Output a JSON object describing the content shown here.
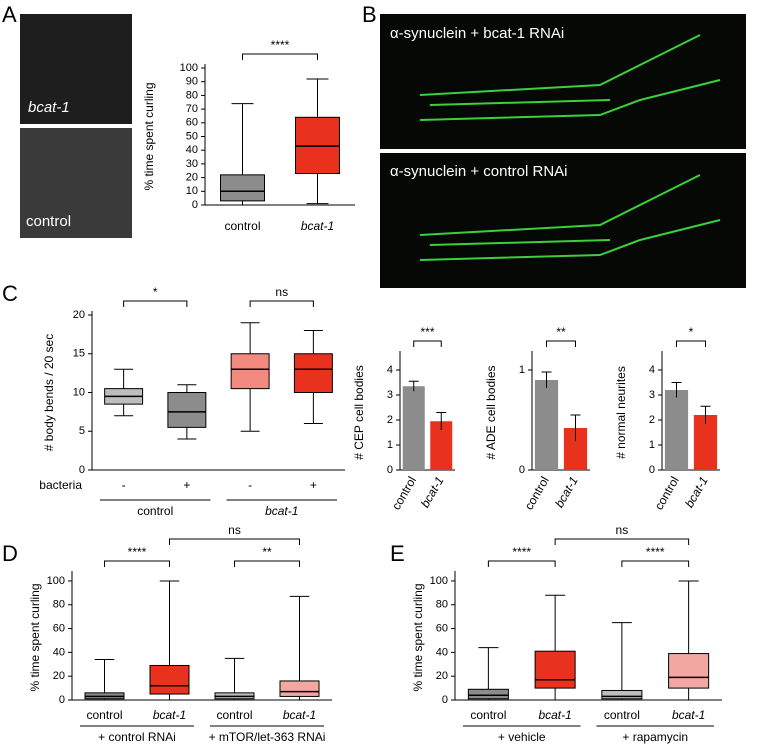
{
  "panel_labels": [
    "A",
    "B",
    "C",
    "D",
    "E"
  ],
  "images": {
    "a_top": "bcat-1",
    "a_bottom": "control",
    "b_top": "α-synuclein + bcat-1 RNAi",
    "b_bottom": "α-synuclein + control RNAi"
  },
  "chart_data": [
    {
      "type": "box",
      "ylabel": "% time spent curling",
      "categories": [
        "control",
        "bcat-1"
      ],
      "colors": [
        "#8c8c8c",
        "#e8321e"
      ],
      "boxes": [
        {
          "min": 0,
          "q1": 3,
          "median": 10,
          "q3": 22,
          "max": 74
        },
        {
          "min": 1,
          "q1": 23,
          "median": 43,
          "q3": 64,
          "max": 92
        }
      ],
      "ylim": [
        0,
        100
      ],
      "yticks": [
        0,
        10,
        20,
        30,
        40,
        50,
        60,
        70,
        80,
        90,
        100
      ],
      "comparisons": [
        {
          "label": "****",
          "pair": [
            0,
            1
          ]
        }
      ]
    },
    {
      "type": "box",
      "ylabel": "# body bends / 20 sec",
      "categories": [
        "-",
        "+",
        "-",
        "+"
      ],
      "row_label": "bacteria",
      "groups": [
        "control",
        "bcat-1"
      ],
      "colors": [
        "#bdbdbd",
        "#8c8c8c",
        "#f28a80",
        "#e8321e"
      ],
      "boxes": [
        {
          "min": 7,
          "q1": 8.5,
          "median": 9.5,
          "q3": 10.5,
          "max": 13
        },
        {
          "min": 4,
          "q1": 5.5,
          "median": 7.5,
          "q3": 10,
          "max": 11
        },
        {
          "min": 5,
          "q1": 10.5,
          "median": 13,
          "q3": 15,
          "max": 19
        },
        {
          "min": 6,
          "q1": 10,
          "median": 13,
          "q3": 15,
          "max": 18
        }
      ],
      "ylim": [
        0,
        20
      ],
      "yticks": [
        0,
        5,
        10,
        15,
        20
      ],
      "comparisons": [
        {
          "label": "*",
          "pair": [
            0,
            1
          ]
        },
        {
          "label": "ns",
          "pair": [
            2,
            3
          ]
        }
      ]
    },
    {
      "type": "bar",
      "ylabel": "# CEP cell bodies",
      "categories": [
        "control",
        "bcat-1"
      ],
      "colors": [
        "#8c8c8c",
        "#e8321e"
      ],
      "values": [
        3.35,
        1.95
      ],
      "errors": [
        0.2,
        0.35
      ],
      "ylim": [
        0,
        4.6
      ],
      "yticks": [
        0,
        1,
        2,
        3,
        4
      ],
      "comparisons": [
        {
          "label": "***",
          "pair": [
            0,
            1
          ]
        }
      ]
    },
    {
      "type": "bar",
      "ylabel": "# ADE cell bodies",
      "categories": [
        "control",
        "bcat-1"
      ],
      "colors": [
        "#8c8c8c",
        "#e8321e"
      ],
      "values": [
        0.9,
        0.42
      ],
      "errors": [
        0.08,
        0.13
      ],
      "ylim": [
        0,
        1.15
      ],
      "yticks": [
        0,
        1
      ],
      "comparisons": [
        {
          "label": "**",
          "pair": [
            0,
            1
          ]
        }
      ]
    },
    {
      "type": "bar",
      "ylabel": "# normal neurites",
      "categories": [
        "control",
        "bcat-1"
      ],
      "colors": [
        "#8c8c8c",
        "#e8321e"
      ],
      "values": [
        3.2,
        2.2
      ],
      "errors": [
        0.3,
        0.35
      ],
      "ylim": [
        0,
        4.6
      ],
      "yticks": [
        0,
        1,
        2,
        3,
        4
      ],
      "comparisons": [
        {
          "label": "*",
          "pair": [
            0,
            1
          ]
        }
      ]
    },
    {
      "type": "box",
      "ylabel": "% time spent curling",
      "categories": [
        "control",
        "bcat-1",
        "control",
        "bcat-1"
      ],
      "groups": [
        "+ control RNAi",
        "+ mTOR/let-363 RNAi"
      ],
      "colors": [
        "#8c8c8c",
        "#e8321e",
        "#bdbdbd",
        "#f2a8a0"
      ],
      "boxes": [
        {
          "min": 0,
          "q1": 1,
          "median": 3,
          "q3": 6,
          "max": 34
        },
        {
          "min": 0,
          "q1": 5,
          "median": 12,
          "q3": 29,
          "max": 100
        },
        {
          "min": 0,
          "q1": 1,
          "median": 3,
          "q3": 6,
          "max": 35
        },
        {
          "min": 0,
          "q1": 3,
          "median": 7,
          "q3": 16,
          "max": 87
        }
      ],
      "ylim": [
        0,
        105
      ],
      "yticks": [
        0,
        20,
        40,
        60,
        80,
        100
      ],
      "comparisons": [
        {
          "label": "****",
          "pair": [
            0,
            1
          ]
        },
        {
          "label": "**",
          "pair": [
            2,
            3
          ]
        },
        {
          "label": "ns",
          "pair": [
            1,
            3
          ]
        }
      ]
    },
    {
      "type": "box",
      "ylabel": "% time spent curling",
      "categories": [
        "control",
        "bcat-1",
        "control",
        "bcat-1"
      ],
      "groups": [
        "+ vehicle",
        "+ rapamycin"
      ],
      "colors": [
        "#8c8c8c",
        "#e8321e",
        "#bdbdbd",
        "#f2a8a0"
      ],
      "boxes": [
        {
          "min": 0,
          "q1": 1,
          "median": 4,
          "q3": 9,
          "max": 44
        },
        {
          "min": 0,
          "q1": 10,
          "median": 17,
          "q3": 41,
          "max": 88
        },
        {
          "min": 0,
          "q1": 1,
          "median": 3,
          "q3": 8,
          "max": 65
        },
        {
          "min": 0,
          "q1": 10,
          "median": 19,
          "q3": 39,
          "max": 100
        }
      ],
      "ylim": [
        0,
        105
      ],
      "yticks": [
        0,
        20,
        40,
        60,
        80,
        100
      ],
      "comparisons": [
        {
          "label": "****",
          "pair": [
            0,
            1
          ]
        },
        {
          "label": "****",
          "pair": [
            2,
            3
          ]
        },
        {
          "label": "ns",
          "pair": [
            1,
            3
          ]
        }
      ]
    }
  ]
}
